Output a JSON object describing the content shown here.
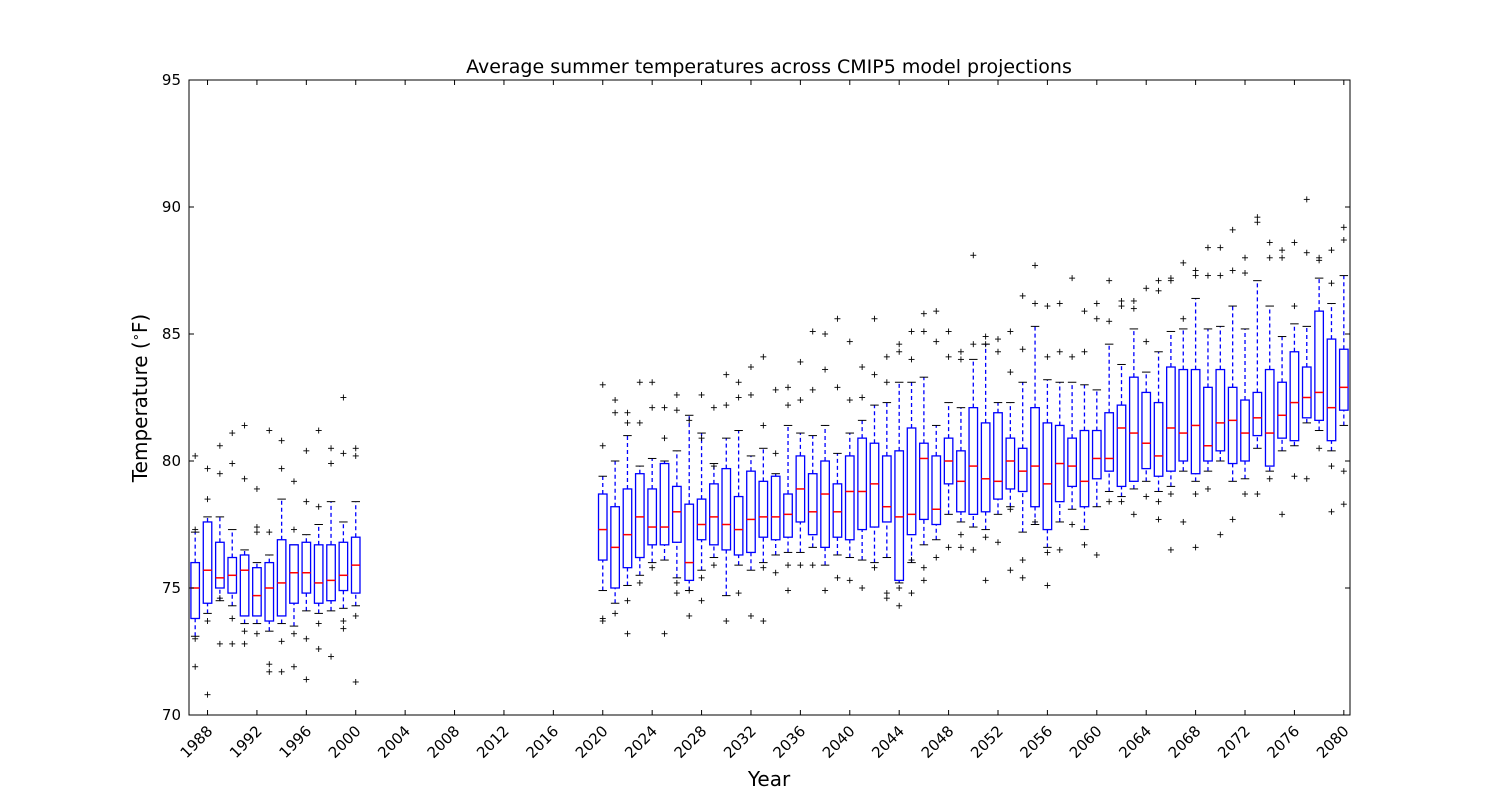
{
  "chart_data": {
    "type": "boxplot",
    "title": "Average summer temperatures across CMIP5 model projections",
    "xlabel": "Year",
    "ylabel": "Temperature (°F)",
    "xlim": [
      1986.5,
      2080.5
    ],
    "ylim": [
      70,
      95
    ],
    "yticks": [
      70,
      75,
      80,
      85,
      90,
      95
    ],
    "xticks": [
      1988,
      1992,
      1996,
      2000,
      2004,
      2008,
      2012,
      2016,
      2020,
      2024,
      2028,
      2032,
      2036,
      2040,
      2044,
      2048,
      2052,
      2056,
      2060,
      2064,
      2068,
      2072,
      2076,
      2080
    ],
    "grid": false,
    "colors": {
      "box": "#0000ff",
      "median": "#ff0000",
      "flier": "#000000",
      "cap": "#000000"
    },
    "boxes": [
      {
        "x": 1987,
        "low": 73.1,
        "q1": 73.8,
        "med": 75.0,
        "q3": 76.0,
        "high": 77.2,
        "fliers": [
          71.9,
          73.0,
          77.3,
          80.2
        ]
      },
      {
        "x": 1988,
        "low": 74.0,
        "q1": 74.4,
        "med": 75.7,
        "q3": 77.6,
        "high": 77.8,
        "fliers": [
          70.8,
          73.7,
          78.5,
          79.7
        ]
      },
      {
        "x": 1989,
        "low": 74.5,
        "q1": 75.0,
        "med": 75.4,
        "q3": 76.8,
        "high": 77.8,
        "fliers": [
          72.8,
          74.6,
          79.5,
          80.6
        ]
      },
      {
        "x": 1990,
        "low": 74.3,
        "q1": 74.8,
        "med": 75.5,
        "q3": 76.2,
        "high": 77.3,
        "fliers": [
          72.8,
          73.8,
          79.9,
          81.1
        ]
      },
      {
        "x": 1991,
        "low": 73.6,
        "q1": 73.9,
        "med": 75.7,
        "q3": 76.3,
        "high": 76.5,
        "fliers": [
          72.8,
          73.3,
          79.3,
          81.4
        ]
      },
      {
        "x": 1992,
        "low": 73.6,
        "q1": 73.9,
        "med": 74.7,
        "q3": 75.8,
        "high": 76.0,
        "fliers": [
          73.2,
          77.2,
          77.4,
          78.9
        ]
      },
      {
        "x": 1993,
        "low": 73.3,
        "q1": 73.7,
        "med": 75.0,
        "q3": 76.0,
        "high": 76.3,
        "fliers": [
          71.7,
          72.0,
          77.2,
          81.2
        ]
      },
      {
        "x": 1994,
        "low": 73.6,
        "q1": 73.9,
        "med": 75.2,
        "q3": 76.9,
        "high": 78.5,
        "fliers": [
          71.7,
          72.9,
          79.7,
          80.8
        ]
      },
      {
        "x": 1995,
        "low": 73.5,
        "q1": 74.4,
        "med": 75.6,
        "q3": 76.7,
        "high": 76.7,
        "fliers": [
          71.9,
          73.2,
          77.3,
          79.2
        ]
      },
      {
        "x": 1996,
        "low": 74.1,
        "q1": 74.8,
        "med": 75.6,
        "q3": 76.8,
        "high": 77.1,
        "fliers": [
          71.4,
          73.0,
          78.4,
          80.4
        ]
      },
      {
        "x": 1997,
        "low": 74.0,
        "q1": 74.4,
        "med": 75.2,
        "q3": 76.7,
        "high": 77.5,
        "fliers": [
          72.6,
          73.6,
          78.2,
          81.2
        ]
      },
      {
        "x": 1998,
        "low": 74.1,
        "q1": 74.5,
        "med": 75.3,
        "q3": 76.7,
        "high": 78.4,
        "fliers": [
          72.3,
          79.9,
          80.5
        ]
      },
      {
        "x": 1999,
        "low": 74.2,
        "q1": 74.9,
        "med": 75.5,
        "q3": 76.8,
        "high": 77.6,
        "fliers": [
          73.4,
          73.7,
          80.3,
          82.5
        ]
      },
      {
        "x": 2000,
        "low": 74.3,
        "q1": 74.8,
        "med": 75.9,
        "q3": 77.0,
        "high": 78.4,
        "fliers": [
          71.3,
          73.9,
          80.2,
          80.5
        ]
      },
      {
        "x": 2020,
        "low": 74.9,
        "q1": 76.1,
        "med": 77.3,
        "q3": 78.7,
        "high": 79.4,
        "fliers": [
          73.7,
          73.8,
          80.6,
          83.0
        ]
      },
      {
        "x": 2021,
        "low": 74.4,
        "q1": 75.0,
        "med": 76.6,
        "q3": 78.2,
        "high": 80.0,
        "fliers": [
          74.0,
          81.9,
          82.4
        ]
      },
      {
        "x": 2022,
        "low": 75.1,
        "q1": 75.8,
        "med": 77.1,
        "q3": 78.9,
        "high": 81.0,
        "fliers": [
          73.2,
          74.5,
          81.5,
          81.9
        ]
      },
      {
        "x": 2023,
        "low": 75.5,
        "q1": 76.2,
        "med": 77.8,
        "q3": 79.5,
        "high": 79.8,
        "fliers": [
          75.2,
          81.5,
          83.1
        ]
      },
      {
        "x": 2024,
        "low": 76.0,
        "q1": 76.7,
        "med": 77.4,
        "q3": 78.9,
        "high": 80.1,
        "fliers": [
          75.8,
          82.1,
          83.1
        ]
      },
      {
        "x": 2025,
        "low": 76.1,
        "q1": 76.7,
        "med": 77.4,
        "q3": 79.9,
        "high": 80.0,
        "fliers": [
          73.2,
          80.9,
          82.1
        ]
      },
      {
        "x": 2026,
        "low": 75.4,
        "q1": 76.8,
        "med": 78.0,
        "q3": 79.0,
        "high": 80.4,
        "fliers": [
          74.8,
          75.2,
          82.0,
          82.6
        ]
      },
      {
        "x": 2027,
        "low": 74.9,
        "q1": 75.3,
        "med": 76.0,
        "q3": 78.3,
        "high": 81.8,
        "fliers": [
          73.9,
          74.9,
          81.6
        ]
      },
      {
        "x": 2028,
        "low": 75.7,
        "q1": 76.9,
        "med": 77.5,
        "q3": 78.5,
        "high": 81.1,
        "fliers": [
          74.5,
          75.4,
          80.9,
          82.6
        ]
      },
      {
        "x": 2029,
        "low": 76.2,
        "q1": 76.7,
        "med": 77.8,
        "q3": 79.1,
        "high": 79.9,
        "fliers": [
          75.9,
          79.8,
          82.1
        ]
      },
      {
        "x": 2030,
        "low": 74.7,
        "q1": 76.5,
        "med": 77.5,
        "q3": 79.7,
        "high": 80.9,
        "fliers": [
          73.7,
          82.2,
          83.4
        ]
      },
      {
        "x": 2031,
        "low": 75.9,
        "q1": 76.3,
        "med": 77.3,
        "q3": 78.6,
        "high": 81.2,
        "fliers": [
          74.8,
          82.5,
          83.1
        ]
      },
      {
        "x": 2032,
        "low": 75.7,
        "q1": 76.4,
        "med": 77.7,
        "q3": 79.6,
        "high": 80.2,
        "fliers": [
          73.9,
          82.6,
          83.7
        ]
      },
      {
        "x": 2033,
        "low": 76.0,
        "q1": 77.0,
        "med": 77.8,
        "q3": 79.2,
        "high": 80.5,
        "fliers": [
          73.7,
          75.8,
          81.4,
          84.1
        ]
      },
      {
        "x": 2034,
        "low": 76.3,
        "q1": 76.9,
        "med": 77.8,
        "q3": 79.4,
        "high": 79.5,
        "fliers": [
          75.6,
          80.3,
          82.8
        ]
      },
      {
        "x": 2035,
        "low": 76.4,
        "q1": 77.0,
        "med": 77.9,
        "q3": 78.7,
        "high": 81.4,
        "fliers": [
          74.9,
          75.9,
          82.2,
          82.9
        ]
      },
      {
        "x": 2036,
        "low": 76.4,
        "q1": 77.6,
        "med": 78.9,
        "q3": 80.2,
        "high": 81.1,
        "fliers": [
          75.9,
          82.4,
          83.9
        ]
      },
      {
        "x": 2037,
        "low": 76.6,
        "q1": 77.1,
        "med": 78.0,
        "q3": 79.5,
        "high": 81.0,
        "fliers": [
          75.9,
          82.8,
          85.1
        ]
      },
      {
        "x": 2038,
        "low": 75.9,
        "q1": 76.6,
        "med": 78.7,
        "q3": 80.0,
        "high": 81.4,
        "fliers": [
          74.9,
          83.6,
          85.0
        ]
      },
      {
        "x": 2039,
        "low": 76.3,
        "q1": 77.0,
        "med": 78.0,
        "q3": 79.1,
        "high": 80.3,
        "fliers": [
          75.4,
          82.9,
          85.6
        ]
      },
      {
        "x": 2040,
        "low": 76.2,
        "q1": 76.9,
        "med": 78.8,
        "q3": 80.2,
        "high": 81.1,
        "fliers": [
          75.3,
          82.4,
          84.7
        ]
      },
      {
        "x": 2041,
        "low": 76.1,
        "q1": 77.3,
        "med": 78.8,
        "q3": 80.9,
        "high": 81.6,
        "fliers": [
          75.0,
          82.5,
          83.7
        ]
      },
      {
        "x": 2042,
        "low": 76.0,
        "q1": 77.4,
        "med": 79.1,
        "q3": 80.7,
        "high": 82.2,
        "fliers": [
          75.8,
          83.4,
          85.6
        ]
      },
      {
        "x": 2043,
        "low": 76.2,
        "q1": 77.6,
        "med": 78.2,
        "q3": 80.2,
        "high": 82.3,
        "fliers": [
          74.6,
          74.8,
          83.1,
          84.1
        ]
      },
      {
        "x": 2044,
        "low": 75.2,
        "q1": 75.3,
        "med": 77.8,
        "q3": 80.4,
        "high": 83.1,
        "fliers": [
          74.3,
          75.0,
          84.3,
          84.6
        ]
      },
      {
        "x": 2045,
        "low": 76.0,
        "q1": 77.1,
        "med": 77.9,
        "q3": 81.3,
        "high": 83.1,
        "fliers": [
          74.8,
          76.1,
          84.0,
          85.1
        ]
      },
      {
        "x": 2046,
        "low": 76.7,
        "q1": 77.7,
        "med": 80.1,
        "q3": 80.7,
        "high": 83.3,
        "fliers": [
          75.3,
          75.8,
          85.1,
          85.8
        ]
      },
      {
        "x": 2047,
        "low": 76.9,
        "q1": 77.5,
        "med": 78.1,
        "q3": 80.2,
        "high": 81.4,
        "fliers": [
          76.2,
          84.7,
          85.9
        ]
      },
      {
        "x": 2048,
        "low": 77.9,
        "q1": 79.1,
        "med": 80.0,
        "q3": 80.9,
        "high": 82.3,
        "fliers": [
          76.6,
          84.1,
          85.1
        ]
      },
      {
        "x": 2049,
        "low": 77.6,
        "q1": 78.0,
        "med": 79.2,
        "q3": 80.4,
        "high": 82.1,
        "fliers": [
          76.6,
          77.1,
          84.0,
          84.3
        ]
      },
      {
        "x": 2050,
        "low": 77.4,
        "q1": 77.9,
        "med": 79.8,
        "q3": 82.1,
        "high": 84.0,
        "fliers": [
          76.5,
          84.6,
          88.1
        ]
      },
      {
        "x": 2051,
        "low": 77.3,
        "q1": 78.0,
        "med": 79.3,
        "q3": 81.5,
        "high": 84.6,
        "fliers": [
          75.3,
          77.0,
          84.6,
          84.9
        ]
      },
      {
        "x": 2052,
        "low": 77.9,
        "q1": 78.5,
        "med": 79.2,
        "q3": 81.9,
        "high": 82.3,
        "fliers": [
          76.8,
          84.3,
          84.8
        ]
      },
      {
        "x": 2053,
        "low": 78.2,
        "q1": 78.9,
        "med": 80.0,
        "q3": 80.9,
        "high": 82.3,
        "fliers": [
          75.7,
          78.1,
          83.5,
          85.1
        ]
      },
      {
        "x": 2054,
        "low": 77.2,
        "q1": 78.8,
        "med": 79.6,
        "q3": 80.5,
        "high": 83.1,
        "fliers": [
          75.4,
          76.1,
          84.4,
          86.5
        ]
      },
      {
        "x": 2055,
        "low": 77.5,
        "q1": 78.2,
        "med": 79.8,
        "q3": 82.1,
        "high": 85.3,
        "fliers": [
          77.6,
          86.2,
          87.7
        ]
      },
      {
        "x": 2056,
        "low": 76.6,
        "q1": 77.3,
        "med": 79.1,
        "q3": 81.5,
        "high": 83.2,
        "fliers": [
          75.1,
          76.4,
          84.1,
          86.1
        ]
      },
      {
        "x": 2057,
        "low": 77.6,
        "q1": 78.4,
        "med": 79.9,
        "q3": 81.4,
        "high": 83.1,
        "fliers": [
          76.5,
          84.3,
          86.2
        ]
      },
      {
        "x": 2058,
        "low": 78.1,
        "q1": 79.0,
        "med": 79.8,
        "q3": 80.9,
        "high": 83.1,
        "fliers": [
          77.5,
          84.1,
          87.2
        ]
      },
      {
        "x": 2059,
        "low": 77.3,
        "q1": 78.2,
        "med": 79.2,
        "q3": 81.2,
        "high": 83.0,
        "fliers": [
          76.7,
          84.3,
          85.9
        ]
      },
      {
        "x": 2060,
        "low": 78.2,
        "q1": 79.3,
        "med": 80.1,
        "q3": 81.2,
        "high": 82.8,
        "fliers": [
          76.3,
          85.6,
          86.2
        ]
      },
      {
        "x": 2061,
        "low": 78.8,
        "q1": 79.6,
        "med": 80.1,
        "q3": 81.9,
        "high": 84.6,
        "fliers": [
          78.4,
          85.5,
          87.1
        ]
      },
      {
        "x": 2062,
        "low": 78.6,
        "q1": 79.0,
        "med": 81.3,
        "q3": 82.2,
        "high": 83.8,
        "fliers": [
          78.4,
          86.1,
          86.3
        ]
      },
      {
        "x": 2063,
        "low": 78.9,
        "q1": 79.2,
        "med": 81.1,
        "q3": 83.3,
        "high": 85.2,
        "fliers": [
          77.9,
          86.0,
          86.3
        ]
      },
      {
        "x": 2064,
        "low": 79.2,
        "q1": 79.7,
        "med": 80.7,
        "q3": 82.7,
        "high": 83.5,
        "fliers": [
          78.6,
          84.7,
          86.8
        ]
      },
      {
        "x": 2065,
        "low": 78.8,
        "q1": 79.4,
        "med": 80.2,
        "q3": 82.3,
        "high": 84.3,
        "fliers": [
          77.7,
          78.4,
          86.7,
          87.1
        ]
      },
      {
        "x": 2066,
        "low": 79.0,
        "q1": 79.6,
        "med": 81.3,
        "q3": 83.7,
        "high": 85.1,
        "fliers": [
          76.5,
          78.7,
          87.1,
          87.2
        ]
      },
      {
        "x": 2067,
        "low": 79.6,
        "q1": 80.0,
        "med": 81.1,
        "q3": 83.6,
        "high": 85.2,
        "fliers": [
          77.6,
          85.6,
          87.8
        ]
      },
      {
        "x": 2068,
        "low": 79.2,
        "q1": 79.5,
        "med": 81.4,
        "q3": 83.6,
        "high": 86.4,
        "fliers": [
          76.6,
          78.7,
          87.3,
          87.5
        ]
      },
      {
        "x": 2069,
        "low": 79.6,
        "q1": 80.0,
        "med": 80.6,
        "q3": 82.9,
        "high": 85.2,
        "fliers": [
          78.9,
          87.3,
          88.4
        ]
      },
      {
        "x": 2070,
        "low": 80.0,
        "q1": 80.4,
        "med": 81.5,
        "q3": 83.6,
        "high": 85.3,
        "fliers": [
          77.1,
          87.3,
          88.4
        ]
      },
      {
        "x": 2071,
        "low": 79.2,
        "q1": 79.9,
        "med": 81.6,
        "q3": 82.9,
        "high": 86.1,
        "fliers": [
          77.7,
          87.5,
          89.1
        ]
      },
      {
        "x": 2072,
        "low": 79.3,
        "q1": 80.0,
        "med": 81.1,
        "q3": 82.4,
        "high": 85.2,
        "fliers": [
          78.7,
          87.4,
          88.0
        ]
      },
      {
        "x": 2073,
        "low": 80.5,
        "q1": 81.0,
        "med": 81.7,
        "q3": 82.7,
        "high": 87.1,
        "fliers": [
          78.7,
          89.4,
          89.6
        ]
      },
      {
        "x": 2074,
        "low": 79.6,
        "q1": 79.8,
        "med": 81.1,
        "q3": 83.6,
        "high": 86.1,
        "fliers": [
          79.3,
          88.0,
          88.6
        ]
      },
      {
        "x": 2075,
        "low": 80.4,
        "q1": 80.9,
        "med": 81.8,
        "q3": 83.1,
        "high": 84.9,
        "fliers": [
          77.9,
          88.0,
          88.3
        ]
      },
      {
        "x": 2076,
        "low": 80.6,
        "q1": 80.8,
        "med": 82.3,
        "q3": 84.3,
        "high": 85.4,
        "fliers": [
          79.4,
          86.1,
          88.6
        ]
      },
      {
        "x": 2077,
        "low": 81.5,
        "q1": 81.7,
        "med": 82.5,
        "q3": 83.7,
        "high": 85.3,
        "fliers": [
          79.3,
          88.2,
          90.3
        ]
      },
      {
        "x": 2078,
        "low": 81.2,
        "q1": 81.6,
        "med": 82.7,
        "q3": 85.9,
        "high": 87.2,
        "fliers": [
          80.5,
          87.9,
          88.0
        ]
      },
      {
        "x": 2079,
        "low": 80.4,
        "q1": 80.8,
        "med": 82.1,
        "q3": 84.8,
        "high": 86.2,
        "fliers": [
          78.0,
          79.8,
          87.0,
          88.3
        ]
      },
      {
        "x": 2080,
        "low": 81.4,
        "q1": 82.0,
        "med": 82.9,
        "q3": 84.4,
        "high": 87.3,
        "fliers": [
          78.3,
          79.6,
          88.7,
          89.2
        ]
      }
    ]
  }
}
